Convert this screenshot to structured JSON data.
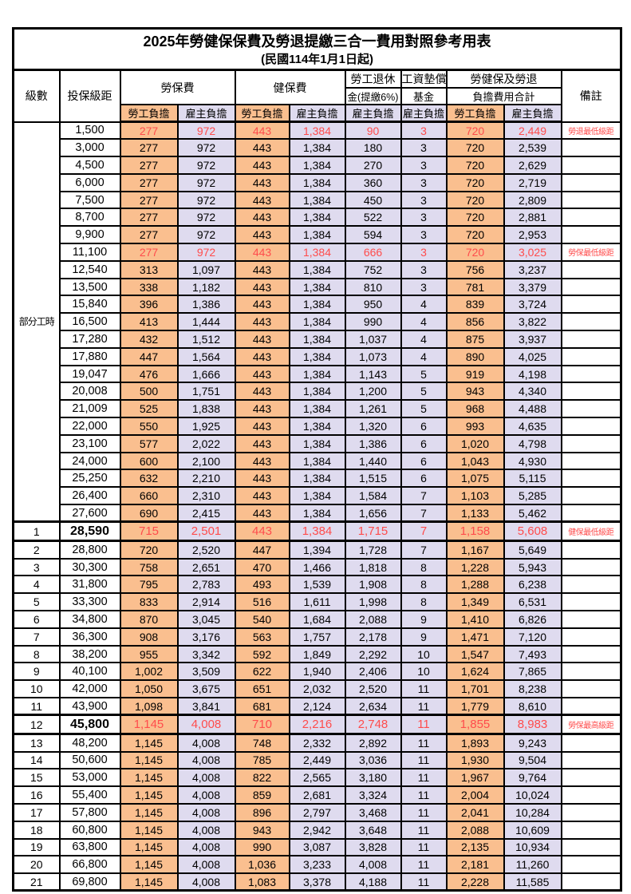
{
  "page": {
    "title": "2025年勞健保保費及勞退提繳三合一費用對照參考用表",
    "subtitle": "(民國114年1月1日起)"
  },
  "header": {
    "level": "級數",
    "bracket": "投保級距",
    "labor_fee": "勞保費",
    "health_fee": "健保費",
    "pension_l1": "勞工退休",
    "pension_l2": "金(提繳6%)",
    "wage_fund_l1": "工資墊償",
    "wage_fund_l2": "基金",
    "total_l1": "勞健保及勞退",
    "total_l2": "負擔費用合計",
    "remark": "備註",
    "employee_share": "勞工負擔",
    "employer_share": "雇主負擔"
  },
  "part_time_label": "部分工時",
  "colors": {
    "employee_bg": "#FABF8F",
    "employer_bg": "#DFDBEF",
    "highlight_red": "#FF4C4C",
    "border": "#000000"
  },
  "rows": [
    {
      "level": "",
      "bracket": "1,500",
      "values": [
        "277",
        "972",
        "443",
        "1,384",
        "90",
        "3",
        "720",
        "2,449"
      ],
      "remark": "勞退最低級距",
      "red": true,
      "em": false
    },
    {
      "level": "",
      "bracket": "3,000",
      "values": [
        "277",
        "972",
        "443",
        "1,384",
        "180",
        "3",
        "720",
        "2,539"
      ],
      "remark": "",
      "red": false,
      "em": false
    },
    {
      "level": "",
      "bracket": "4,500",
      "values": [
        "277",
        "972",
        "443",
        "1,384",
        "270",
        "3",
        "720",
        "2,629"
      ],
      "remark": "",
      "red": false,
      "em": false
    },
    {
      "level": "",
      "bracket": "6,000",
      "values": [
        "277",
        "972",
        "443",
        "1,384",
        "360",
        "3",
        "720",
        "2,719"
      ],
      "remark": "",
      "red": false,
      "em": false
    },
    {
      "level": "",
      "bracket": "7,500",
      "values": [
        "277",
        "972",
        "443",
        "1,384",
        "450",
        "3",
        "720",
        "2,809"
      ],
      "remark": "",
      "red": false,
      "em": false
    },
    {
      "level": "",
      "bracket": "8,700",
      "values": [
        "277",
        "972",
        "443",
        "1,384",
        "522",
        "3",
        "720",
        "2,881"
      ],
      "remark": "",
      "red": false,
      "em": false
    },
    {
      "level": "",
      "bracket": "9,900",
      "values": [
        "277",
        "972",
        "443",
        "1,384",
        "594",
        "3",
        "720",
        "2,953"
      ],
      "remark": "",
      "red": false,
      "em": false
    },
    {
      "level": "",
      "bracket": "11,100",
      "values": [
        "277",
        "972",
        "443",
        "1,384",
        "666",
        "3",
        "720",
        "3,025"
      ],
      "remark": "勞保最低級距",
      "red": true,
      "em": false
    },
    {
      "level": "",
      "bracket": "12,540",
      "values": [
        "313",
        "1,097",
        "443",
        "1,384",
        "752",
        "3",
        "756",
        "3,237"
      ],
      "remark": "",
      "red": false,
      "em": false
    },
    {
      "level": "",
      "bracket": "13,500",
      "values": [
        "338",
        "1,182",
        "443",
        "1,384",
        "810",
        "3",
        "781",
        "3,379"
      ],
      "remark": "",
      "red": false,
      "em": false
    },
    {
      "level": "",
      "bracket": "15,840",
      "values": [
        "396",
        "1,386",
        "443",
        "1,384",
        "950",
        "4",
        "839",
        "3,724"
      ],
      "remark": "",
      "red": false,
      "em": false
    },
    {
      "level": "",
      "bracket": "16,500",
      "values": [
        "413",
        "1,444",
        "443",
        "1,384",
        "990",
        "4",
        "856",
        "3,822"
      ],
      "remark": "",
      "red": false,
      "em": false
    },
    {
      "level": "",
      "bracket": "17,280",
      "values": [
        "432",
        "1,512",
        "443",
        "1,384",
        "1,037",
        "4",
        "875",
        "3,937"
      ],
      "remark": "",
      "red": false,
      "em": false
    },
    {
      "level": "",
      "bracket": "17,880",
      "values": [
        "447",
        "1,564",
        "443",
        "1,384",
        "1,073",
        "4",
        "890",
        "4,025"
      ],
      "remark": "",
      "red": false,
      "em": false
    },
    {
      "level": "",
      "bracket": "19,047",
      "values": [
        "476",
        "1,666",
        "443",
        "1,384",
        "1,143",
        "5",
        "919",
        "4,198"
      ],
      "remark": "",
      "red": false,
      "em": false
    },
    {
      "level": "",
      "bracket": "20,008",
      "values": [
        "500",
        "1,751",
        "443",
        "1,384",
        "1,200",
        "5",
        "943",
        "4,340"
      ],
      "remark": "",
      "red": false,
      "em": false
    },
    {
      "level": "",
      "bracket": "21,009",
      "values": [
        "525",
        "1,838",
        "443",
        "1,384",
        "1,261",
        "5",
        "968",
        "4,488"
      ],
      "remark": "",
      "red": false,
      "em": false
    },
    {
      "level": "",
      "bracket": "22,000",
      "values": [
        "550",
        "1,925",
        "443",
        "1,384",
        "1,320",
        "6",
        "993",
        "4,635"
      ],
      "remark": "",
      "red": false,
      "em": false
    },
    {
      "level": "",
      "bracket": "23,100",
      "values": [
        "577",
        "2,022",
        "443",
        "1,384",
        "1,386",
        "6",
        "1,020",
        "4,798"
      ],
      "remark": "",
      "red": false,
      "em": false
    },
    {
      "level": "",
      "bracket": "24,000",
      "values": [
        "600",
        "2,100",
        "443",
        "1,384",
        "1,440",
        "6",
        "1,043",
        "4,930"
      ],
      "remark": "",
      "red": false,
      "em": false
    },
    {
      "level": "",
      "bracket": "25,250",
      "values": [
        "632",
        "2,210",
        "443",
        "1,384",
        "1,515",
        "6",
        "1,075",
        "5,115"
      ],
      "remark": "",
      "red": false,
      "em": false
    },
    {
      "level": "",
      "bracket": "26,400",
      "values": [
        "660",
        "2,310",
        "443",
        "1,384",
        "1,584",
        "7",
        "1,103",
        "5,285"
      ],
      "remark": "",
      "red": false,
      "em": false
    },
    {
      "level": "",
      "bracket": "27,600",
      "values": [
        "690",
        "2,415",
        "443",
        "1,384",
        "1,656",
        "7",
        "1,133",
        "5,462"
      ],
      "remark": "",
      "red": false,
      "em": false
    },
    {
      "level": "1",
      "bracket": "28,590",
      "values": [
        "715",
        "2,501",
        "443",
        "1,384",
        "1,715",
        "7",
        "1,158",
        "5,608"
      ],
      "remark": "健保最低級距",
      "red": true,
      "em": true
    },
    {
      "level": "2",
      "bracket": "28,800",
      "values": [
        "720",
        "2,520",
        "447",
        "1,394",
        "1,728",
        "7",
        "1,167",
        "5,649"
      ],
      "remark": "",
      "red": false,
      "em": false
    },
    {
      "level": "3",
      "bracket": "30,300",
      "values": [
        "758",
        "2,651",
        "470",
        "1,466",
        "1,818",
        "8",
        "1,228",
        "5,943"
      ],
      "remark": "",
      "red": false,
      "em": false
    },
    {
      "level": "4",
      "bracket": "31,800",
      "values": [
        "795",
        "2,783",
        "493",
        "1,539",
        "1,908",
        "8",
        "1,288",
        "6,238"
      ],
      "remark": "",
      "red": false,
      "em": false
    },
    {
      "level": "5",
      "bracket": "33,300",
      "values": [
        "833",
        "2,914",
        "516",
        "1,611",
        "1,998",
        "8",
        "1,349",
        "6,531"
      ],
      "remark": "",
      "red": false,
      "em": false
    },
    {
      "level": "6",
      "bracket": "34,800",
      "values": [
        "870",
        "3,045",
        "540",
        "1,684",
        "2,088",
        "9",
        "1,410",
        "6,826"
      ],
      "remark": "",
      "red": false,
      "em": false
    },
    {
      "level": "7",
      "bracket": "36,300",
      "values": [
        "908",
        "3,176",
        "563",
        "1,757",
        "2,178",
        "9",
        "1,471",
        "7,120"
      ],
      "remark": "",
      "red": false,
      "em": false
    },
    {
      "level": "8",
      "bracket": "38,200",
      "values": [
        "955",
        "3,342",
        "592",
        "1,849",
        "2,292",
        "10",
        "1,547",
        "7,493"
      ],
      "remark": "",
      "red": false,
      "em": false
    },
    {
      "level": "9",
      "bracket": "40,100",
      "values": [
        "1,002",
        "3,509",
        "622",
        "1,940",
        "2,406",
        "10",
        "1,624",
        "7,865"
      ],
      "remark": "",
      "red": false,
      "em": false
    },
    {
      "level": "10",
      "bracket": "42,000",
      "values": [
        "1,050",
        "3,675",
        "651",
        "2,032",
        "2,520",
        "11",
        "1,701",
        "8,238"
      ],
      "remark": "",
      "red": false,
      "em": false
    },
    {
      "level": "11",
      "bracket": "43,900",
      "values": [
        "1,098",
        "3,841",
        "681",
        "2,124",
        "2,634",
        "11",
        "1,779",
        "8,610"
      ],
      "remark": "",
      "red": false,
      "em": false
    },
    {
      "level": "12",
      "bracket": "45,800",
      "values": [
        "1,145",
        "4,008",
        "710",
        "2,216",
        "2,748",
        "11",
        "1,855",
        "8,983"
      ],
      "remark": "勞保最高級距",
      "red": true,
      "em": true
    },
    {
      "level": "13",
      "bracket": "48,200",
      "values": [
        "1,145",
        "4,008",
        "748",
        "2,332",
        "2,892",
        "11",
        "1,893",
        "9,243"
      ],
      "remark": "",
      "red": false,
      "em": false
    },
    {
      "level": "14",
      "bracket": "50,600",
      "values": [
        "1,145",
        "4,008",
        "785",
        "2,449",
        "3,036",
        "11",
        "1,930",
        "9,504"
      ],
      "remark": "",
      "red": false,
      "em": false
    },
    {
      "level": "15",
      "bracket": "53,000",
      "values": [
        "1,145",
        "4,008",
        "822",
        "2,565",
        "3,180",
        "11",
        "1,967",
        "9,764"
      ],
      "remark": "",
      "red": false,
      "em": false
    },
    {
      "level": "16",
      "bracket": "55,400",
      "values": [
        "1,145",
        "4,008",
        "859",
        "2,681",
        "3,324",
        "11",
        "2,004",
        "10,024"
      ],
      "remark": "",
      "red": false,
      "em": false
    },
    {
      "level": "17",
      "bracket": "57,800",
      "values": [
        "1,145",
        "4,008",
        "896",
        "2,797",
        "3,468",
        "11",
        "2,041",
        "10,284"
      ],
      "remark": "",
      "red": false,
      "em": false
    },
    {
      "level": "18",
      "bracket": "60,800",
      "values": [
        "1,145",
        "4,008",
        "943",
        "2,942",
        "3,648",
        "11",
        "2,088",
        "10,609"
      ],
      "remark": "",
      "red": false,
      "em": false
    },
    {
      "level": "19",
      "bracket": "63,800",
      "values": [
        "1,145",
        "4,008",
        "990",
        "3,087",
        "3,828",
        "11",
        "2,135",
        "10,934"
      ],
      "remark": "",
      "red": false,
      "em": false
    },
    {
      "level": "20",
      "bracket": "66,800",
      "values": [
        "1,145",
        "4,008",
        "1,036",
        "3,233",
        "4,008",
        "11",
        "2,181",
        "11,260"
      ],
      "remark": "",
      "red": false,
      "em": false
    },
    {
      "level": "21",
      "bracket": "69,800",
      "values": [
        "1,145",
        "4,008",
        "1,083",
        "3,378",
        "4,188",
        "11",
        "2,228",
        "11,585"
      ],
      "remark": "",
      "red": false,
      "em": false
    }
  ]
}
